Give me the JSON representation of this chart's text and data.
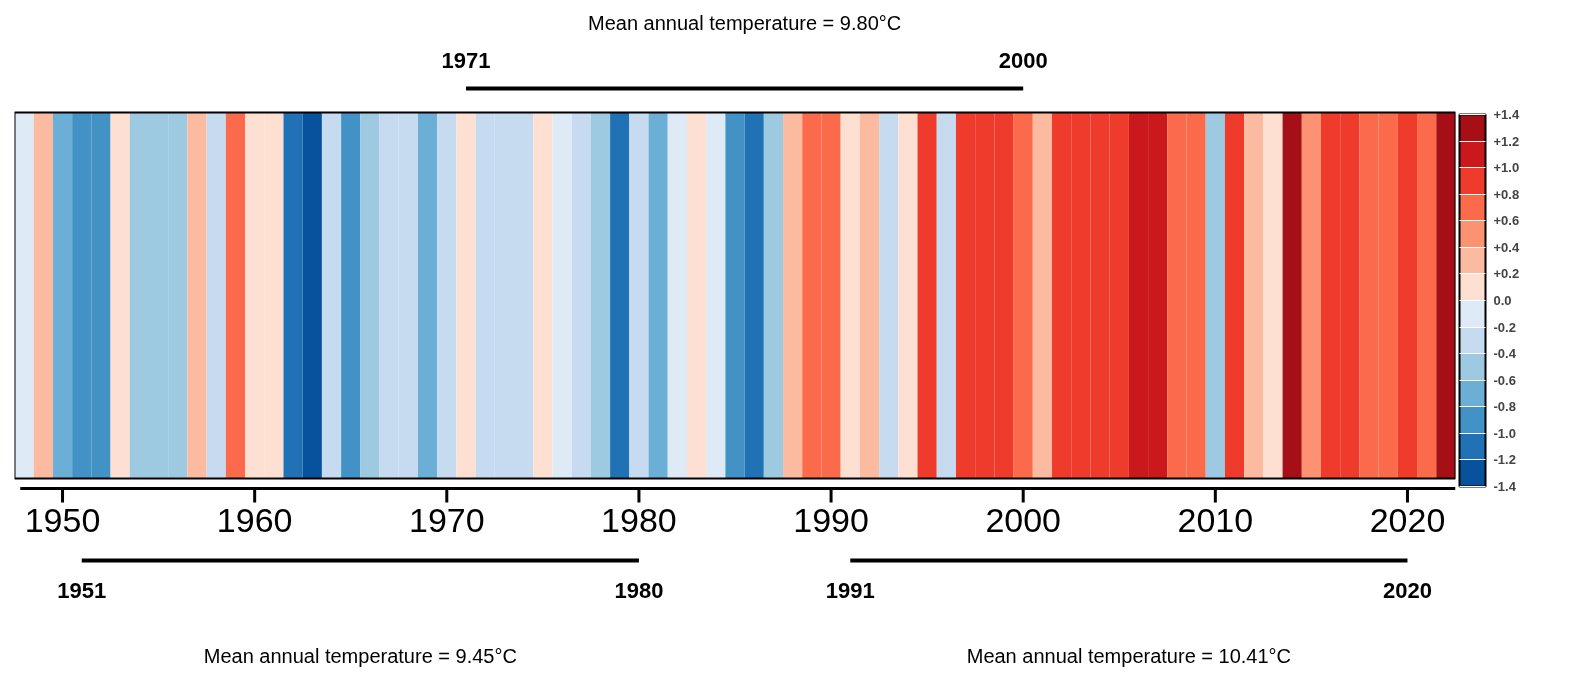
{
  "chart_data": {
    "type": "heatmap",
    "categories": [
      null,
      null,
      "1950",
      null,
      null,
      null,
      null,
      null,
      null,
      null,
      null,
      null,
      "1960",
      null,
      null,
      null,
      null,
      null,
      null,
      null,
      null,
      null,
      "1970",
      null,
      null,
      null,
      null,
      null,
      null,
      null,
      null,
      null,
      "1980",
      null,
      null,
      null,
      null,
      null,
      null,
      null,
      null,
      null,
      "1990",
      null,
      null,
      null,
      null,
      null,
      null,
      null,
      null,
      null,
      "2000",
      null,
      null,
      null,
      null,
      null,
      null,
      null,
      null,
      null,
      "2010",
      null,
      null,
      null,
      null,
      null,
      null,
      null,
      null,
      null,
      "2020",
      null,
      null
    ],
    "y_categories": [
      null
    ],
    "cells": [
      [
        -0.1,
        0.3,
        -0.7,
        -0.9,
        -0.9,
        0.1,
        -0.5,
        -0.5,
        -0.5,
        0.3,
        -0.3,
        0.7,
        0.1,
        0.1,
        -1.1,
        -1.3,
        -0.3,
        -0.9,
        -0.5,
        -0.3,
        -0.3,
        -0.7,
        -0.3,
        0.1,
        -0.3,
        -0.3,
        -0.3,
        0.1,
        -0.1,
        -0.3,
        -0.5,
        -1.1,
        -0.3,
        -0.7,
        -0.1,
        0.1,
        -0.1,
        -0.9,
        -1.1,
        -0.5,
        0.3,
        0.7,
        0.7,
        0.1,
        0.3,
        -0.3,
        0.1,
        0.9,
        -0.3,
        0.9,
        0.9,
        0.9,
        0.7,
        0.3,
        0.9,
        0.9,
        0.9,
        0.9,
        1.1,
        1.1,
        0.7,
        0.7,
        -0.5,
        0.9,
        0.3,
        0.1,
        1.3,
        0.5,
        0.9,
        0.9,
        0.7,
        0.7,
        0.9,
        0.7,
        1.3
      ]
    ],
    "colors": [
      "#08519c",
      "#2171b5",
      "#4292c6",
      "#6baed6",
      "#9ecae1",
      "#c6dbef",
      "#deebf7",
      "#fee0d2",
      "#fcbba1",
      "#fc9272",
      "#fb6a4a",
      "#ef3b2c",
      "#cb181d",
      "#a50f15"
    ],
    "clim": [
      -1.4,
      1.4
    ],
    "cticks": [
      {
        "value": 1.4,
        "label": "+1.4"
      },
      {
        "value": 1.2,
        "label": "+1.2"
      },
      {
        "value": 1.0,
        "label": "+1.0"
      },
      {
        "value": 0.8,
        "label": "+0.8"
      },
      {
        "value": 0.6,
        "label": "+0.6"
      },
      {
        "value": 0.4,
        "label": "+0.4"
      },
      {
        "value": 0.2,
        "label": "+0.2"
      },
      {
        "value": 0,
        "label": "0.0"
      },
      {
        "value": -0.2,
        "label": "-0.2"
      },
      {
        "value": -0.4,
        "label": "-0.4"
      },
      {
        "value": -0.6,
        "label": "-0.6"
      },
      {
        "value": -0.8,
        "label": "-0.8"
      },
      {
        "value": -1.0,
        "label": "-1.0"
      },
      {
        "value": -1.2,
        "label": "-1.2"
      },
      {
        "value": -1.4,
        "label": "-1.4"
      }
    ],
    "annotations": [
      "1951",
      "1980",
      "Mean annual temperature = 9.45°C",
      "1991",
      "2020",
      "Mean annual temperature = 10.41°C",
      "1971",
      "2000",
      "Mean annual temperature = 9.80°C"
    ]
  }
}
